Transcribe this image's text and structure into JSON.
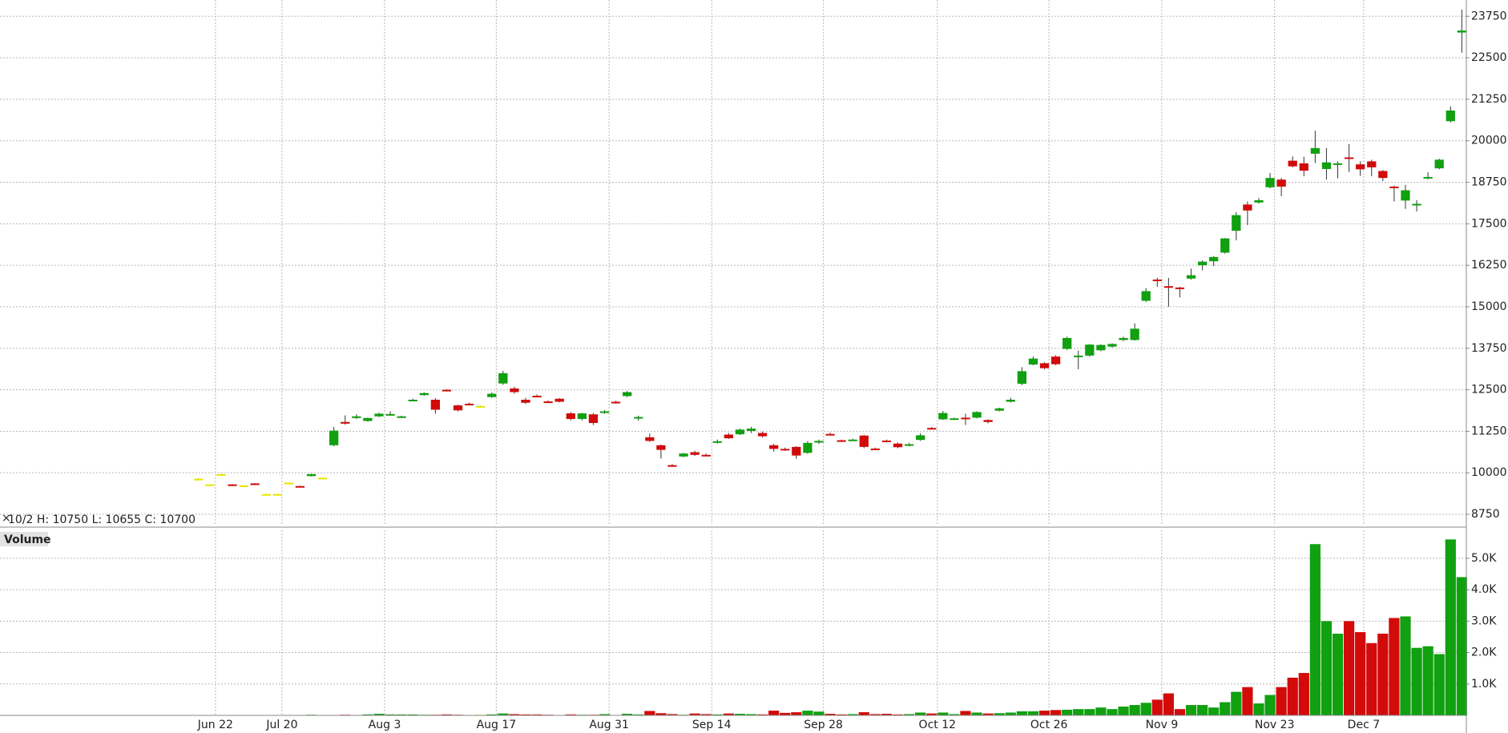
{
  "chart_data": [
    {
      "type": "candlestick",
      "info": "10/2  H: 10750  L: 10655  C: 10700",
      "colors": {
        "up": "#10a010",
        "down": "#d20a0a",
        "flat": "#e6e600"
      },
      "grid": true,
      "xlim": [
        -17.6,
        112.4
      ],
      "ylim": [
        8460,
        24240
      ],
      "yticks": [
        8750,
        10000,
        11250,
        12500,
        13750,
        15000,
        16250,
        17500,
        18750,
        20000,
        21250,
        22500,
        23750
      ],
      "open": [
        9820,
        9650,
        9960,
        9650,
        9620,
        9680,
        9360,
        9360,
        9700,
        9600,
        9900,
        9850,
        10830,
        11530,
        11650,
        11560,
        11700,
        11750,
        11690,
        12170,
        12340,
        12200,
        12500,
        12030,
        12080,
        12010,
        12280,
        12690,
        12540,
        12200,
        12320,
        12150,
        12230,
        11790,
        11620,
        11760,
        11800,
        12140,
        12310,
        11670,
        11070,
        10830,
        10230,
        10490,
        10620,
        10540,
        10920,
        11150,
        11160,
        11260,
        11200,
        10830,
        10720,
        10780,
        10600,
        10910,
        11170,
        10980,
        10980,
        11120,
        10730,
        10970,
        10880,
        10850,
        10990,
        11350,
        11610,
        11620,
        11660,
        11660,
        11590,
        11870,
        12140,
        12680,
        13260,
        13300,
        13500,
        13730,
        13500,
        13530,
        13690,
        13800,
        14000,
        14000,
        15180,
        15820,
        15620,
        15580,
        15850,
        16250,
        16370,
        16630,
        17290,
        18080,
        18140,
        18600,
        18830,
        19400,
        19320,
        19610,
        19150,
        19280,
        19500,
        19290,
        19380,
        19090,
        18620,
        18200,
        18090,
        18880,
        19170,
        20590,
        23260
      ],
      "high": [
        9840,
        9660,
        9970,
        9660,
        9630,
        9690,
        9370,
        9370,
        9710,
        9610,
        9970,
        9860,
        11380,
        11730,
        11760,
        11660,
        11810,
        11850,
        11720,
        12230,
        12420,
        12250,
        12520,
        12050,
        12110,
        12030,
        12420,
        13070,
        12590,
        12260,
        12360,
        12180,
        12250,
        11830,
        11800,
        11800,
        11890,
        12170,
        12460,
        11720,
        11180,
        10850,
        10260,
        10600,
        10660,
        10580,
        11000,
        11200,
        11330,
        11380,
        11240,
        10870,
        10760,
        10800,
        10950,
        11000,
        11210,
        11000,
        11030,
        11140,
        10760,
        11000,
        10910,
        10900,
        11190,
        11380,
        11860,
        11660,
        11780,
        11850,
        11610,
        11960,
        12260,
        13180,
        13500,
        13330,
        13540,
        14100,
        13680,
        13880,
        13870,
        13900,
        14100,
        14500,
        15560,
        15870,
        15870,
        15600,
        16150,
        16400,
        16530,
        17070,
        17850,
        18170,
        18270,
        19030,
        18880,
        19530,
        19520,
        20300,
        19780,
        19380,
        19900,
        19380,
        19430,
        19120,
        18650,
        18670,
        18210,
        19050,
        19460,
        21040,
        23950
      ],
      "low": [
        9800,
        9640,
        9950,
        9600,
        9610,
        9660,
        9350,
        9350,
        9690,
        9580,
        9890,
        9840,
        10800,
        11450,
        11620,
        11540,
        11680,
        11720,
        11670,
        12150,
        12320,
        11780,
        12460,
        11850,
        12050,
        11990,
        12260,
        12650,
        12380,
        12070,
        12280,
        12110,
        12120,
        11580,
        11580,
        11440,
        11780,
        12080,
        12280,
        11570,
        10930,
        10430,
        10180,
        10470,
        10510,
        10500,
        10880,
        11020,
        11140,
        11200,
        11060,
        10640,
        10660,
        10420,
        10570,
        10870,
        11130,
        10940,
        10960,
        10740,
        10690,
        10940,
        10740,
        10800,
        10960,
        11310,
        11590,
        11600,
        11440,
        11640,
        11490,
        11850,
        12120,
        12640,
        13240,
        13120,
        13240,
        13700,
        13120,
        13500,
        13660,
        13770,
        13970,
        13980,
        15150,
        15600,
        15000,
        15280,
        15820,
        16100,
        16230,
        16600,
        17000,
        17460,
        18110,
        18570,
        18330,
        19200,
        18930,
        19330,
        18830,
        18870,
        19060,
        18940,
        18930,
        18790,
        18170,
        17950,
        17870,
        18840,
        19140,
        20550,
        22650
      ],
      "close": [
        9820,
        9650,
        9960,
        9610,
        9620,
        9670,
        9360,
        9360,
        9700,
        9590,
        9960,
        9850,
        11270,
        11480,
        11700,
        11650,
        11780,
        11770,
        11700,
        12200,
        12400,
        11900,
        12470,
        11880,
        12070,
        12010,
        12380,
        13000,
        12430,
        12110,
        12300,
        12130,
        12140,
        11620,
        11790,
        11500,
        11850,
        12100,
        12430,
        11680,
        10960,
        10690,
        10220,
        10580,
        10540,
        10520,
        10950,
        11040,
        11300,
        11330,
        11100,
        10720,
        10700,
        10520,
        10900,
        10960,
        11140,
        10960,
        11000,
        10780,
        10720,
        10960,
        10770,
        10860,
        11130,
        11340,
        11800,
        11640,
        11630,
        11830,
        11530,
        11940,
        12200,
        13060,
        13440,
        13150,
        13270,
        14060,
        13530,
        13860,
        13850,
        13880,
        14060,
        14340,
        15470,
        15810,
        15600,
        15550,
        15950,
        16360,
        16500,
        17060,
        17760,
        17900,
        18210,
        18880,
        18620,
        19230,
        19100,
        19780,
        19350,
        19320,
        19480,
        19140,
        19200,
        18880,
        18590,
        18510,
        18100,
        18910,
        19430,
        20910,
        23320
      ]
    },
    {
      "type": "bar",
      "title": "Volume",
      "grid": true,
      "xlim": [
        -17.6,
        112.4
      ],
      "ylim": [
        0,
        5890
      ],
      "yticks": [
        {
          "value": 1000,
          "label": "1.0K"
        },
        {
          "value": 2000,
          "label": "2.0K"
        },
        {
          "value": 3000,
          "label": "3.0K"
        },
        {
          "value": 4000,
          "label": "4.0K"
        },
        {
          "value": 5000,
          "label": "5.0K"
        }
      ],
      "xticks": [
        {
          "value": 1.5,
          "label": "Jun 22"
        },
        {
          "value": 7.4,
          "label": "Jul 20"
        },
        {
          "value": 16.5,
          "label": "Aug 3"
        },
        {
          "value": 26.4,
          "label": "Aug 17"
        },
        {
          "value": 36.4,
          "label": "Aug 31"
        },
        {
          "value": 45.5,
          "label": "Sep 14"
        },
        {
          "value": 55.4,
          "label": "Sep 28"
        },
        {
          "value": 65.5,
          "label": "Oct 12"
        },
        {
          "value": 75.4,
          "label": "Oct 26"
        },
        {
          "value": 85.4,
          "label": "Nov 9"
        },
        {
          "value": 95.4,
          "label": "Nov 23"
        },
        {
          "value": 103.3,
          "label": "Dec 7"
        }
      ],
      "values": [
        0,
        0,
        0,
        0,
        0,
        0,
        0,
        0,
        0,
        0,
        20,
        0,
        10,
        20,
        10,
        30,
        50,
        30,
        30,
        30,
        20,
        20,
        30,
        20,
        10,
        20,
        30,
        60,
        40,
        30,
        30,
        20,
        10,
        30,
        20,
        20,
        40,
        10,
        50,
        30,
        140,
        70,
        40,
        20,
        60,
        40,
        30,
        60,
        50,
        40,
        30,
        150,
        80,
        100,
        150,
        120,
        50,
        30,
        40,
        100,
        40,
        50,
        30,
        40,
        90,
        60,
        90,
        40,
        140,
        90,
        60,
        70,
        90,
        130,
        130,
        150,
        170,
        180,
        200,
        200,
        250,
        200,
        280,
        330,
        400,
        500,
        700,
        200,
        330,
        330,
        250,
        420,
        750,
        900,
        380,
        650,
        900,
        1200,
        1350,
        5450,
        3000,
        2600,
        3000,
        2650,
        2300,
        2600,
        3100,
        3150,
        2150,
        2200,
        1950,
        5600,
        4400
      ]
    }
  ]
}
